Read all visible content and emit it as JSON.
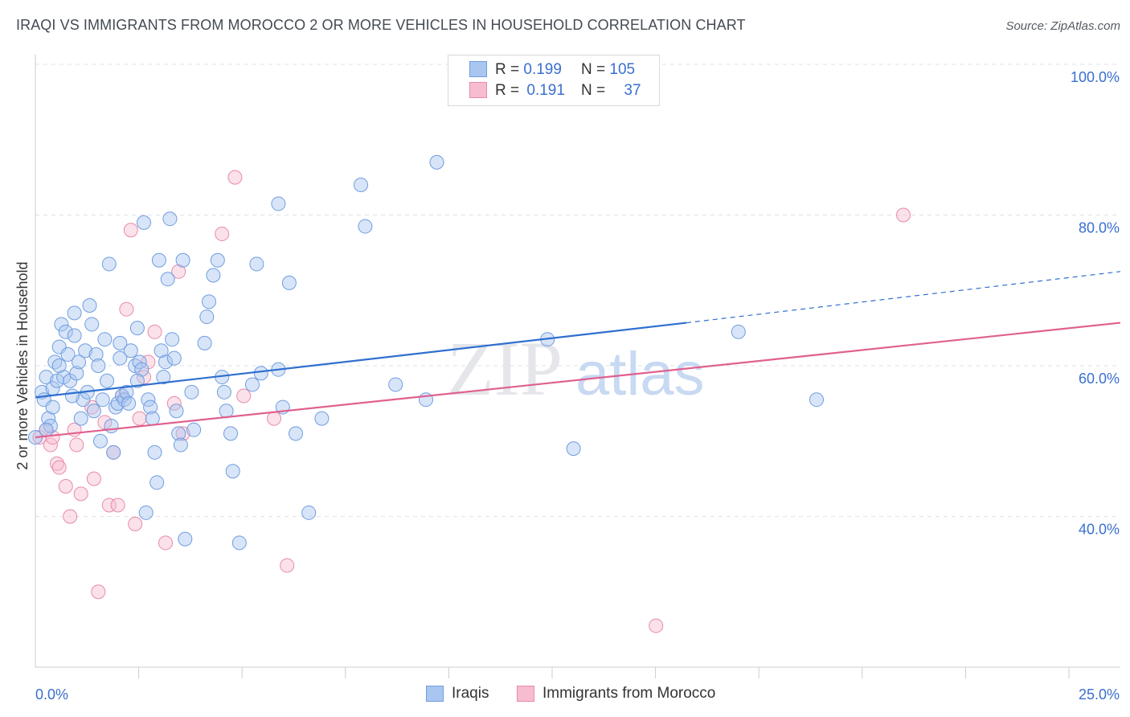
{
  "title": "IRAQI VS IMMIGRANTS FROM MOROCCO 2 OR MORE VEHICLES IN HOUSEHOLD CORRELATION CHART",
  "source": "Source: ZipAtlas.com",
  "watermark": {
    "zip": "ZIP",
    "atlas": "atlas"
  },
  "legend": {
    "rows": [
      {
        "r_label": "R =",
        "r_value": "0.199",
        "n_label": "N =",
        "n_value": "105",
        "color": "#a9c6f0",
        "stroke": "#6f9de0"
      },
      {
        "r_label": "R =",
        "r_value": "0.191",
        "n_label": "N =",
        "n_value": "37",
        "color": "#f7bcd0",
        "stroke": "#e88aaa"
      }
    ]
  },
  "bottom_legend": {
    "series1": "Iraqis",
    "series2": "Immigrants from Morocco"
  },
  "chart_data": {
    "type": "scatter",
    "xlabel": "",
    "ylabel": "2 or more Vehicles in Household",
    "xlim": [
      0,
      25
    ],
    "ylim": [
      20,
      100
    ],
    "x_tick_labels": {
      "left": "0.0%",
      "right": "25.0%"
    },
    "y_tick_labels": [
      "100.0%",
      "80.0%",
      "60.0%",
      "40.0%"
    ],
    "y_ticks": [
      100,
      80,
      60,
      40
    ],
    "grid": true,
    "colors": {
      "iraqis": "#6f9de0",
      "iraqis_fill": "#a9c6f0",
      "morocco": "#e88aaa",
      "morocco_fill": "#f7bcd0",
      "trend_blue": "#2f6fcf",
      "trend_pink": "#e0608e",
      "tick_label": "#3a6fcf"
    },
    "series": [
      {
        "name": "Iraqis",
        "trend": {
          "x0": 0,
          "y0": 55.8,
          "x_solid_end": 15,
          "y_solid_end": 65.7,
          "x1": 25,
          "y1": 72.5
        },
        "points": [
          [
            0.0,
            50.5
          ],
          [
            0.15,
            56.5
          ],
          [
            0.2,
            55.5
          ],
          [
            0.25,
            58.5
          ],
          [
            0.3,
            53.0
          ],
          [
            0.35,
            52.0
          ],
          [
            0.4,
            57.0
          ],
          [
            0.45,
            60.5
          ],
          [
            0.5,
            58.0
          ],
          [
            0.55,
            62.5
          ],
          [
            0.6,
            65.5
          ],
          [
            0.65,
            58.5
          ],
          [
            0.7,
            64.5
          ],
          [
            0.75,
            61.5
          ],
          [
            0.8,
            58.0
          ],
          [
            0.9,
            64.0
          ],
          [
            0.95,
            59.0
          ],
          [
            1.0,
            60.5
          ],
          [
            1.05,
            53.0
          ],
          [
            1.1,
            55.5
          ],
          [
            1.15,
            62.0
          ],
          [
            1.2,
            56.5
          ],
          [
            1.25,
            68.0
          ],
          [
            1.3,
            65.5
          ],
          [
            1.35,
            54.0
          ],
          [
            1.4,
            61.5
          ],
          [
            1.45,
            60.0
          ],
          [
            1.5,
            50.0
          ],
          [
            1.55,
            55.5
          ],
          [
            1.6,
            63.5
          ],
          [
            1.7,
            73.5
          ],
          [
            1.75,
            52.0
          ],
          [
            1.8,
            48.5
          ],
          [
            1.85,
            54.5
          ],
          [
            1.9,
            55.0
          ],
          [
            1.95,
            61.0
          ],
          [
            2.0,
            56.0
          ],
          [
            2.05,
            55.5
          ],
          [
            2.1,
            56.5
          ],
          [
            2.15,
            55.0
          ],
          [
            2.2,
            62.0
          ],
          [
            2.3,
            60.0
          ],
          [
            2.35,
            65.0
          ],
          [
            2.4,
            60.5
          ],
          [
            2.5,
            79.0
          ],
          [
            2.55,
            40.5
          ],
          [
            2.6,
            55.5
          ],
          [
            2.65,
            54.5
          ],
          [
            2.7,
            53.0
          ],
          [
            2.75,
            48.5
          ],
          [
            2.8,
            44.5
          ],
          [
            2.85,
            74.0
          ],
          [
            2.9,
            62.0
          ],
          [
            2.95,
            58.5
          ],
          [
            3.0,
            60.5
          ],
          [
            3.05,
            71.5
          ],
          [
            3.1,
            79.5
          ],
          [
            3.15,
            63.5
          ],
          [
            3.2,
            61.0
          ],
          [
            3.25,
            54.0
          ],
          [
            3.3,
            51.0
          ],
          [
            3.35,
            49.5
          ],
          [
            3.4,
            74.0
          ],
          [
            3.45,
            37.0
          ],
          [
            3.9,
            63.0
          ],
          [
            3.95,
            66.5
          ],
          [
            4.0,
            68.5
          ],
          [
            4.1,
            72.0
          ],
          [
            4.2,
            74.0
          ],
          [
            4.3,
            58.5
          ],
          [
            4.35,
            56.5
          ],
          [
            4.4,
            54.0
          ],
          [
            4.5,
            51.0
          ],
          [
            4.55,
            46.0
          ],
          [
            4.7,
            36.5
          ],
          [
            5.0,
            57.5
          ],
          [
            5.1,
            73.5
          ],
          [
            5.2,
            59.0
          ],
          [
            5.6,
            81.5
          ],
          [
            5.6,
            59.5
          ],
          [
            5.7,
            54.5
          ],
          [
            5.85,
            71.0
          ],
          [
            6.0,
            51.0
          ],
          [
            6.3,
            40.5
          ],
          [
            6.6,
            53.0
          ],
          [
            7.5,
            84.0
          ],
          [
            7.6,
            78.5
          ],
          [
            8.3,
            57.5
          ],
          [
            9.0,
            55.5
          ],
          [
            9.25,
            87.0
          ],
          [
            11.8,
            63.5
          ],
          [
            12.4,
            49.0
          ],
          [
            16.2,
            64.5
          ],
          [
            18.0,
            55.5
          ],
          [
            3.65,
            51.5
          ],
          [
            2.45,
            59.5
          ],
          [
            0.85,
            56.0
          ],
          [
            1.65,
            58.0
          ],
          [
            0.55,
            60.0
          ],
          [
            0.4,
            54.5
          ],
          [
            0.9,
            67.0
          ],
          [
            1.95,
            63.0
          ],
          [
            3.6,
            56.5
          ],
          [
            2.35,
            58.0
          ],
          [
            0.25,
            51.5
          ]
        ]
      },
      {
        "name": "Immigrants from Morocco",
        "trend": {
          "x0": 0,
          "y0": 50.5,
          "x1": 25,
          "y1": 65.7
        },
        "points": [
          [
            0.1,
            50.5
          ],
          [
            0.25,
            51.5
          ],
          [
            0.35,
            49.5
          ],
          [
            0.4,
            50.5
          ],
          [
            0.5,
            47.0
          ],
          [
            0.55,
            46.5
          ],
          [
            0.7,
            44.0
          ],
          [
            0.8,
            40.0
          ],
          [
            0.9,
            51.5
          ],
          [
            0.95,
            49.5
          ],
          [
            1.05,
            43.0
          ],
          [
            1.3,
            54.5
          ],
          [
            1.35,
            45.0
          ],
          [
            1.45,
            30.0
          ],
          [
            1.6,
            52.5
          ],
          [
            1.7,
            41.5
          ],
          [
            1.8,
            48.5
          ],
          [
            1.9,
            41.5
          ],
          [
            2.0,
            56.0
          ],
          [
            2.1,
            67.5
          ],
          [
            2.2,
            78.0
          ],
          [
            2.3,
            39.0
          ],
          [
            2.4,
            53.0
          ],
          [
            2.5,
            58.5
          ],
          [
            2.6,
            60.5
          ],
          [
            2.75,
            64.5
          ],
          [
            3.0,
            36.5
          ],
          [
            3.2,
            55.0
          ],
          [
            3.3,
            72.5
          ],
          [
            3.4,
            51.0
          ],
          [
            4.3,
            77.5
          ],
          [
            4.6,
            85.0
          ],
          [
            4.8,
            56.0
          ],
          [
            5.5,
            53.0
          ],
          [
            5.8,
            33.5
          ],
          [
            14.3,
            25.5
          ],
          [
            20.0,
            80.0
          ]
        ]
      }
    ]
  }
}
